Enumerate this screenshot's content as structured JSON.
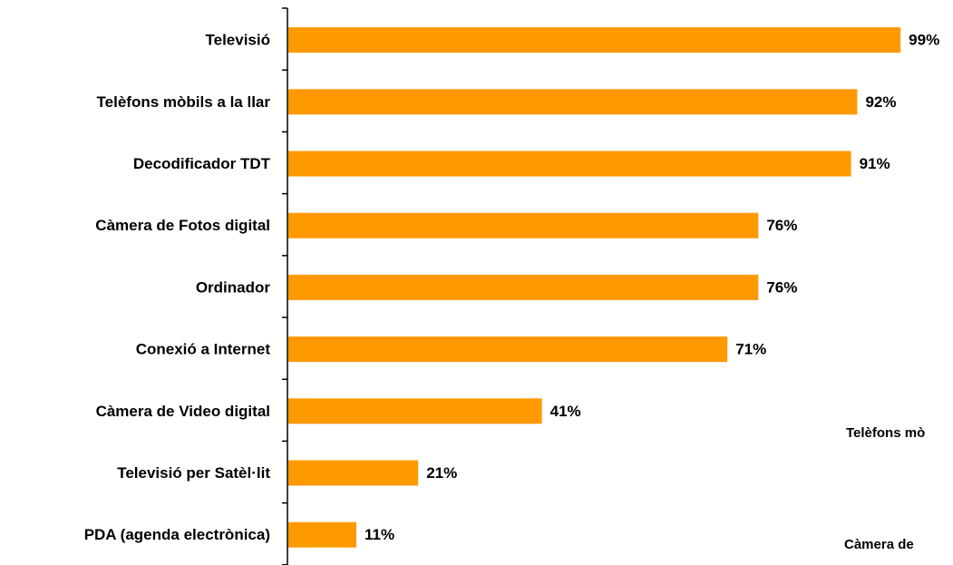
{
  "chart_data": {
    "type": "bar",
    "orientation": "horizontal",
    "categories": [
      "Televisió",
      "Telèfons mòbils a la llar",
      "Decodificador TDT",
      "Càmera de Fotos digital",
      "Ordinador ",
      "Conexió a Internet ",
      "Càmera de Video digital",
      "Televisió per Satèl·lit",
      "PDA (agenda electrònica)"
    ],
    "values": [
      99,
      92,
      91,
      76,
      76,
      71,
      41,
      21,
      11
    ],
    "value_labels": [
      "99%",
      "92%",
      "91%",
      "76%",
      "76%",
      "71%",
      "41%",
      "21%",
      "11%"
    ],
    "xlim": [
      0,
      100
    ],
    "title": "",
    "xlabel": "",
    "ylabel": "",
    "grid": false,
    "bar_color": "#FF9900"
  },
  "stray_labels": [
    "Telèfons mò",
    "Càmera de "
  ]
}
